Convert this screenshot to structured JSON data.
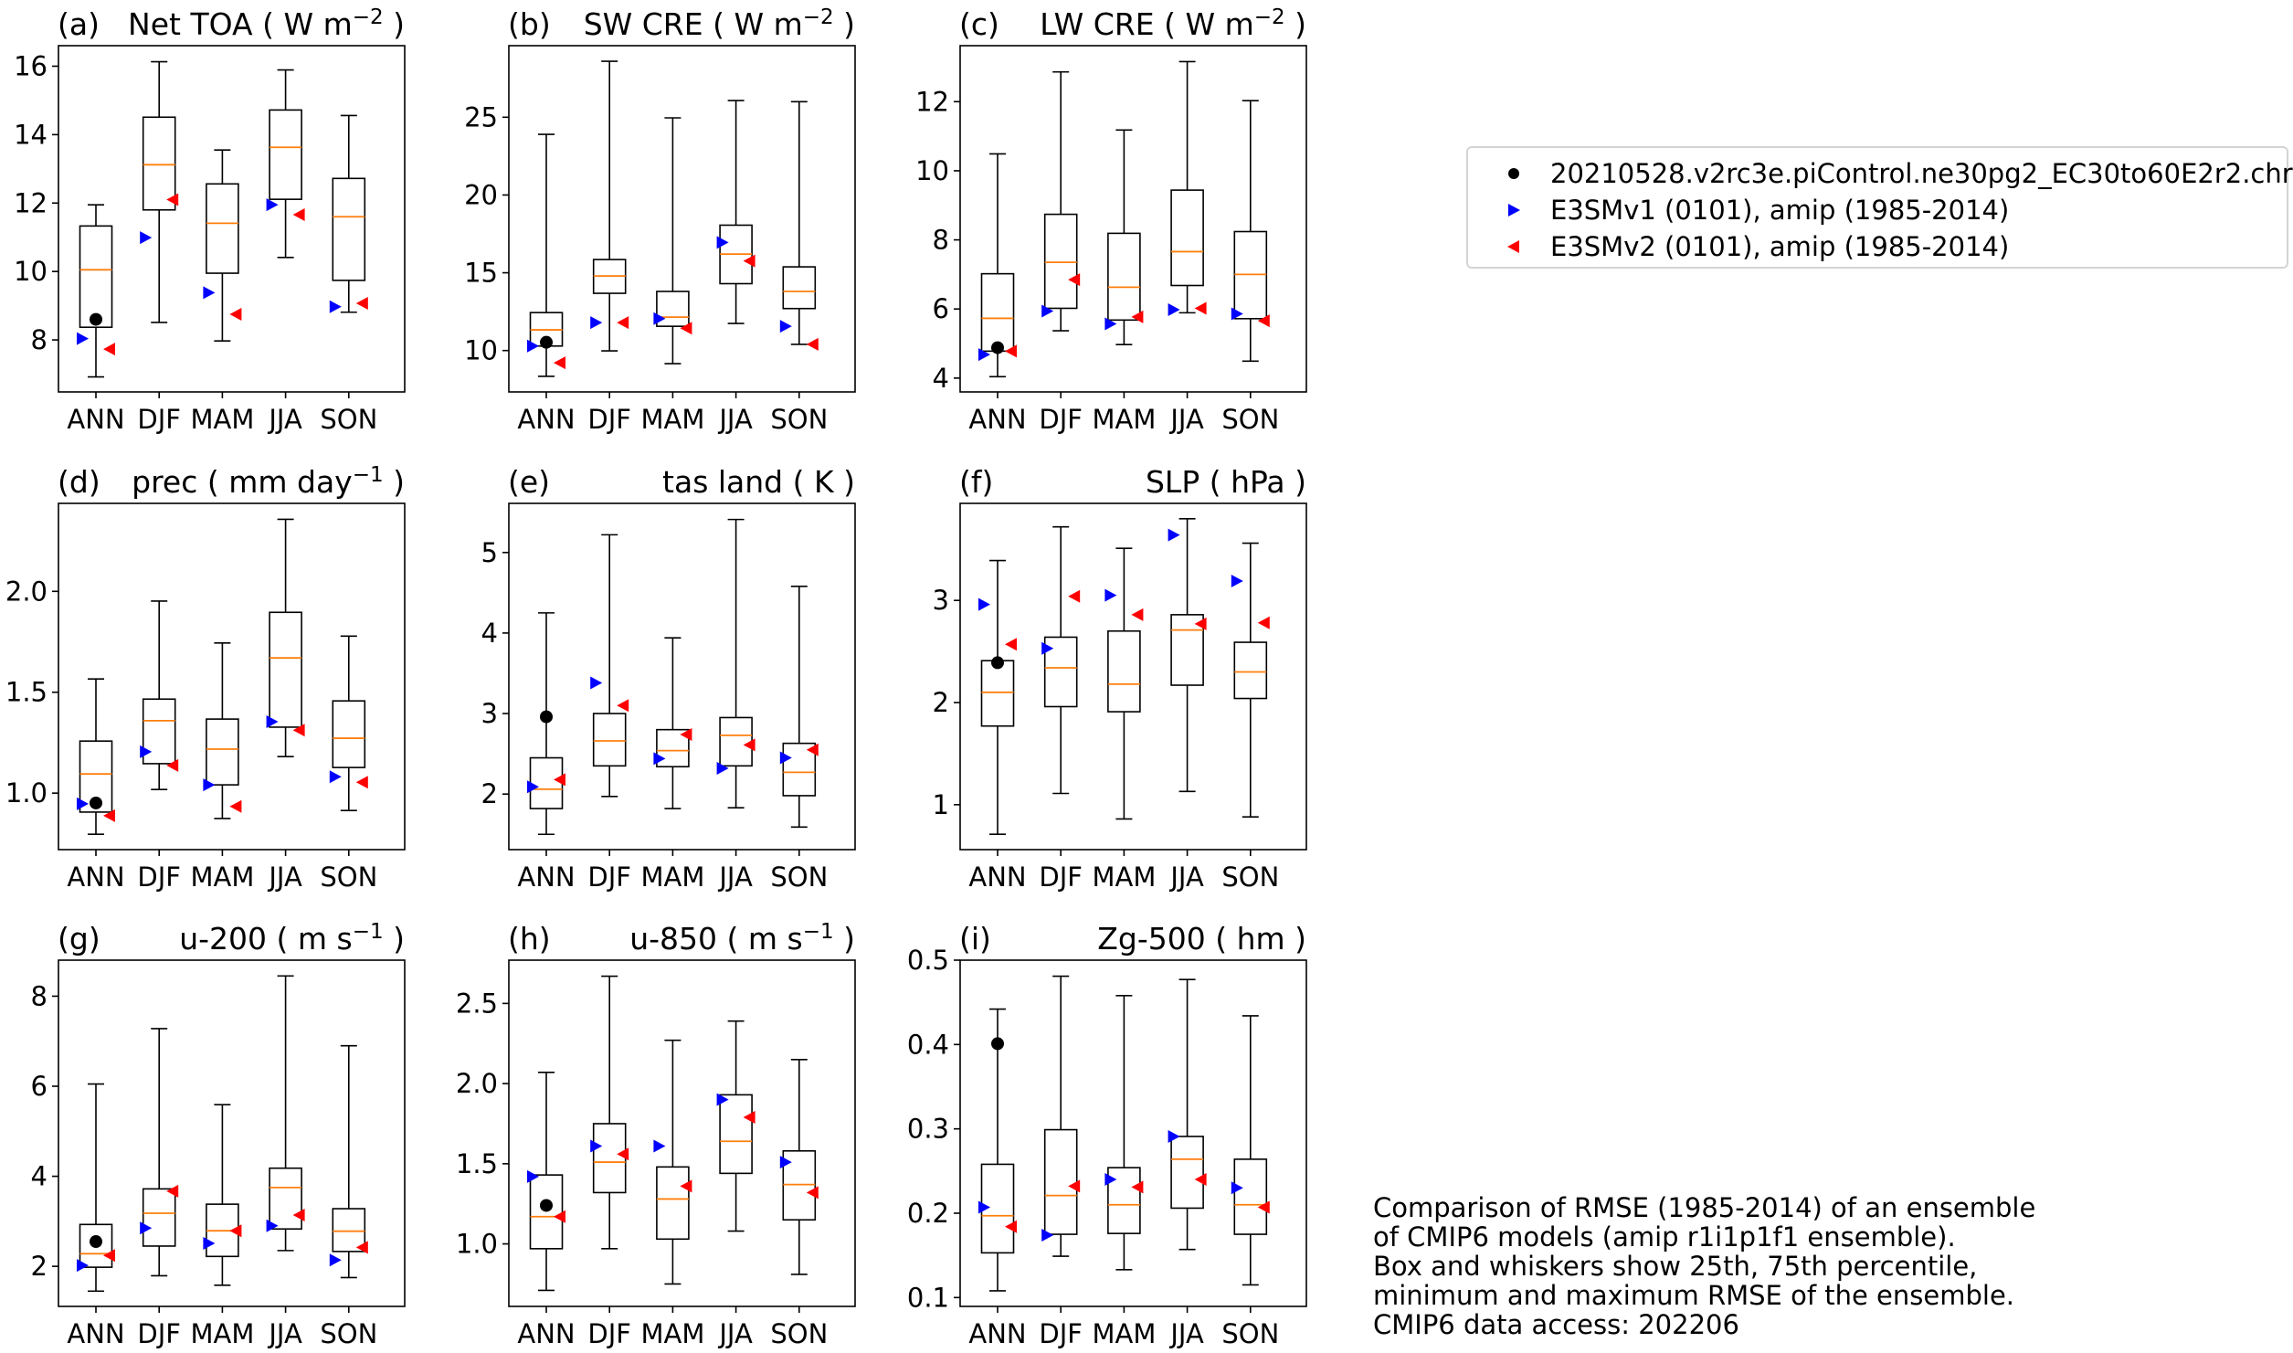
{
  "chart_data": {
    "type": "box",
    "categories": [
      "ANN",
      "DJF",
      "MAM",
      "JJA",
      "SON"
    ],
    "legend": {
      "placement": "right",
      "entries": [
        {
          "key": "dot",
          "label": "20210528.v2rc3e.piControl.ne30pg2_EC30to60E2r2.chr",
          "color": "#000000",
          "marker": "circle"
        },
        {
          "key": "v1",
          "label": "E3SMv1 (0101), amip (1985-2014)",
          "color": "#0000ff",
          "marker": "triangle-right"
        },
        {
          "key": "v2",
          "label": "E3SMv2 (0101), amip (1985-2014)",
          "color": "#ff0000",
          "marker": "triangle-left"
        }
      ]
    },
    "caption": [
      "Comparison of RMSE (1985-2014) of an ensemble",
      "of CMIP6 models (amip r1i1p1f1 ensemble).",
      "Box and whiskers show 25th, 75th percentile,",
      "minimum and maximum RMSE of the ensemble.",
      "CMIP6 data access: 202206"
    ],
    "colors": {
      "median": "#ff7f0e",
      "box": "#000000"
    },
    "panels": [
      {
        "letter": "(a)",
        "title": "Net TOA ( W m",
        "sup": "−2",
        "title_end": " )",
        "title_align": "center",
        "ylim": [
          6.48,
          16.6
        ],
        "yticks": [
          8,
          10,
          12,
          14,
          16
        ],
        "ytick_labels": [
          "8",
          "10",
          "12",
          "14",
          "16"
        ],
        "min": [
          6.92,
          8.51,
          7.97,
          10.41,
          8.81
        ],
        "q1": [
          8.37,
          11.8,
          9.95,
          12.11,
          9.74
        ],
        "median": [
          10.05,
          13.12,
          11.41,
          13.63,
          11.6
        ],
        "q3": [
          11.33,
          14.51,
          12.56,
          14.72,
          12.72
        ],
        "max": [
          11.95,
          16.13,
          13.55,
          15.89,
          14.56
        ],
        "dot": [
          8.6,
          null,
          null,
          null,
          null
        ],
        "v1": [
          8.04,
          10.99,
          9.38,
          11.95,
          8.97
        ],
        "v2": [
          7.73,
          12.1,
          8.75,
          11.66,
          9.07
        ]
      },
      {
        "letter": "(b)",
        "title": "SW CRE ( W m",
        "sup": "−2",
        "title_end": " )",
        "title_align": "center",
        "ylim": [
          7.34,
          29.6
        ],
        "yticks": [
          10,
          15,
          20,
          25
        ],
        "ytick_labels": [
          "10",
          "15",
          "20",
          "25"
        ],
        "min": [
          8.34,
          9.98,
          9.16,
          11.74,
          10.4
        ],
        "q1": [
          10.29,
          13.68,
          11.56,
          14.3,
          12.7
        ],
        "median": [
          11.33,
          14.79,
          12.15,
          16.2,
          13.8
        ],
        "q3": [
          12.44,
          15.85,
          13.8,
          18.06,
          15.38
        ],
        "max": [
          23.9,
          28.6,
          24.96,
          26.07,
          26.0
        ],
        "dot": [
          10.53,
          null,
          null,
          null,
          null
        ],
        "v1": [
          10.29,
          11.8,
          12.05,
          16.95,
          11.56
        ],
        "v2": [
          9.21,
          11.8,
          11.44,
          15.76,
          10.4
        ]
      },
      {
        "letter": "(c)",
        "title": "LW CRE ( W m",
        "sup": "−2",
        "title_end": " )",
        "title_align": "center",
        "ylim": [
          3.6,
          13.62
        ],
        "yticks": [
          4,
          6,
          8,
          10,
          12
        ],
        "ytick_labels": [
          "4",
          "6",
          "8",
          "10",
          "12"
        ],
        "min": [
          4.04,
          5.37,
          4.97,
          5.89,
          4.49
        ],
        "q1": [
          4.78,
          6.02,
          5.68,
          6.68,
          5.72
        ],
        "median": [
          5.73,
          7.35,
          6.63,
          7.66,
          7.0
        ],
        "q3": [
          7.02,
          8.74,
          8.19,
          9.44,
          8.24
        ],
        "max": [
          10.49,
          12.86,
          11.18,
          13.16,
          12.03
        ],
        "dot": [
          4.88,
          null,
          null,
          null,
          null
        ],
        "v1": [
          4.68,
          5.94,
          5.57,
          5.98,
          5.86
        ],
        "v2": [
          4.78,
          6.85,
          5.77,
          6.02,
          5.66
        ]
      },
      {
        "letter": "(d)",
        "title": "prec ( mm day",
        "sup": "−1",
        "title_end": " )",
        "title_align": "center",
        "ylim": [
          0.72,
          2.436
        ],
        "yticks": [
          1.0,
          1.5,
          2.0
        ],
        "ytick_labels": [
          "1.0",
          "1.5",
          "2.0"
        ],
        "min": [
          0.796,
          1.018,
          0.874,
          1.181,
          0.914
        ],
        "q1": [
          0.906,
          1.146,
          1.041,
          1.327,
          1.127
        ],
        "median": [
          1.095,
          1.359,
          1.218,
          1.67,
          1.272
        ],
        "q3": [
          1.258,
          1.466,
          1.367,
          1.896,
          1.457
        ],
        "max": [
          1.566,
          1.952,
          1.744,
          2.357,
          1.778
        ],
        "dot": [
          0.951,
          null,
          null,
          null,
          null
        ],
        "v1": [
          0.947,
          1.205,
          1.041,
          1.354,
          1.081
        ],
        "v2": [
          0.888,
          1.137,
          0.934,
          1.312,
          1.054
        ]
      },
      {
        "letter": "(e)",
        "title": "tas land ( K )",
        "sup": "",
        "title_end": "",
        "title_align": "right",
        "ylim": [
          1.31,
          5.61
        ],
        "yticks": [
          2,
          3,
          4,
          5
        ],
        "ytick_labels": [
          "2",
          "3",
          "4",
          "5"
        ],
        "min": [
          1.5,
          1.97,
          1.82,
          1.83,
          1.59
        ],
        "q1": [
          1.82,
          2.35,
          2.34,
          2.35,
          1.98
        ],
        "median": [
          2.06,
          2.66,
          2.54,
          2.73,
          2.27
        ],
        "q3": [
          2.45,
          3.0,
          2.8,
          2.95,
          2.63
        ],
        "max": [
          4.25,
          5.22,
          3.94,
          5.41,
          4.58
        ],
        "dot": [
          2.96,
          null,
          null,
          null,
          null
        ],
        "v1": [
          2.09,
          3.38,
          2.44,
          2.32,
          2.45
        ],
        "v2": [
          2.18,
          3.1,
          2.74,
          2.61,
          2.55
        ]
      },
      {
        "letter": "(f)",
        "title": "SLP ( hPa )",
        "sup": "",
        "title_end": "",
        "title_align": "right",
        "ylim": [
          0.56,
          3.95
        ],
        "yticks": [
          1,
          2,
          3
        ],
        "ytick_labels": [
          "1",
          "2",
          "3"
        ],
        "min": [
          0.71,
          1.11,
          0.86,
          1.13,
          0.88
        ],
        "q1": [
          1.77,
          1.96,
          1.91,
          2.17,
          2.04
        ],
        "median": [
          2.1,
          2.34,
          2.18,
          2.71,
          2.3
        ],
        "q3": [
          2.41,
          2.64,
          2.7,
          2.86,
          2.59
        ],
        "max": [
          3.39,
          3.72,
          3.51,
          3.8,
          3.56
        ],
        "dot": [
          2.39,
          null,
          null,
          null,
          null
        ],
        "v1": [
          2.96,
          2.53,
          3.05,
          3.64,
          3.19
        ],
        "v2": [
          2.57,
          3.04,
          2.86,
          2.77,
          2.78
        ]
      },
      {
        "letter": "(g)",
        "title": "u-200 ( m s",
        "sup": "−1",
        "title_end": " )",
        "title_align": "right",
        "ylim": [
          1.11,
          8.8
        ],
        "yticks": [
          2,
          4,
          6,
          8
        ],
        "ytick_labels": [
          "2",
          "4",
          "6",
          "8"
        ],
        "min": [
          1.45,
          1.79,
          1.58,
          2.35,
          1.75
        ],
        "q1": [
          1.98,
          2.45,
          2.22,
          2.83,
          2.33
        ],
        "median": [
          2.28,
          3.18,
          2.79,
          3.75,
          2.78
        ],
        "q3": [
          2.93,
          3.72,
          3.38,
          4.18,
          3.28
        ],
        "max": [
          6.05,
          7.28,
          5.59,
          8.45,
          6.9
        ],
        "dot": [
          2.55,
          null,
          null,
          null,
          null
        ],
        "v1": [
          2.02,
          2.85,
          2.51,
          2.9,
          2.14
        ],
        "v2": [
          2.24,
          3.67,
          2.79,
          3.14,
          2.42
        ]
      },
      {
        "letter": "(h)",
        "title": "u-850 ( m s",
        "sup": "−1",
        "title_end": " )",
        "title_align": "right",
        "ylim": [
          0.61,
          2.77
        ],
        "yticks": [
          1.0,
          1.5,
          2.0,
          2.5
        ],
        "ytick_labels": [
          "1.0",
          "1.5",
          "2.0",
          "2.5"
        ],
        "min": [
          0.71,
          0.97,
          0.75,
          1.08,
          0.81
        ],
        "q1": [
          0.97,
          1.32,
          1.03,
          1.44,
          1.15
        ],
        "median": [
          1.17,
          1.51,
          1.28,
          1.64,
          1.37
        ],
        "q3": [
          1.43,
          1.75,
          1.48,
          1.93,
          1.58
        ],
        "max": [
          2.07,
          2.67,
          2.27,
          2.39,
          2.15
        ],
        "dot": [
          1.24,
          null,
          null,
          null,
          null
        ],
        "v1": [
          1.42,
          1.61,
          1.61,
          1.9,
          1.51
        ],
        "v2": [
          1.17,
          1.56,
          1.36,
          1.79,
          1.32
        ]
      },
      {
        "letter": "(i)",
        "title": "Zg-500 ( hm )",
        "sup": "",
        "title_end": "",
        "title_align": "right",
        "ylim": [
          0.0895,
          0.5
        ],
        "yticks": [
          0.1,
          0.2,
          0.3,
          0.4,
          0.5
        ],
        "ytick_labels": [
          "0.1",
          "0.2",
          "0.3",
          "0.4",
          "0.5"
        ],
        "min": [
          0.108,
          0.149,
          0.133,
          0.157,
          0.115
        ],
        "q1": [
          0.153,
          0.175,
          0.176,
          0.206,
          0.175
        ],
        "median": [
          0.197,
          0.221,
          0.21,
          0.264,
          0.21
        ],
        "q3": [
          0.258,
          0.299,
          0.254,
          0.291,
          0.264
        ],
        "max": [
          0.442,
          0.481,
          0.458,
          0.477,
          0.434
        ],
        "dot": [
          0.401,
          null,
          null,
          null,
          null
        ],
        "v1": [
          0.207,
          0.174,
          0.24,
          0.291,
          0.23
        ],
        "v2": [
          0.184,
          0.232,
          0.231,
          0.24,
          0.207
        ]
      }
    ]
  }
}
